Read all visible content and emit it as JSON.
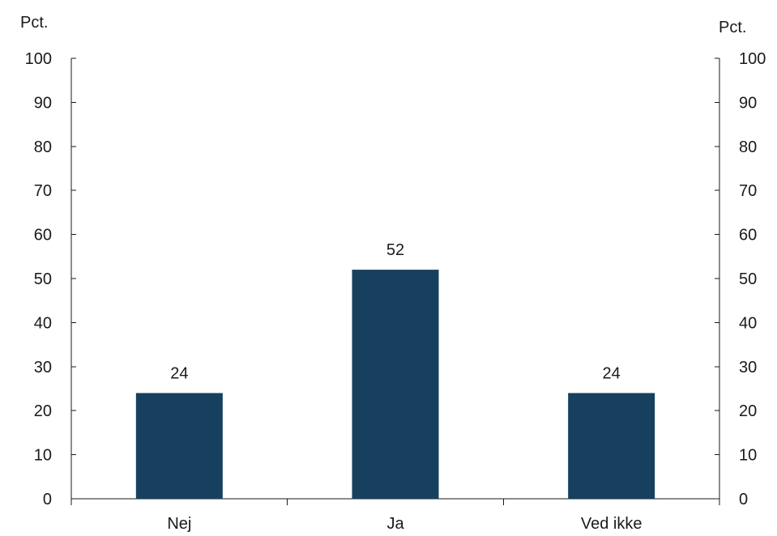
{
  "chart_data": {
    "type": "bar",
    "categories": [
      "Nej",
      "Ja",
      "Ved ikke"
    ],
    "values": [
      24,
      52,
      24
    ],
    "data_labels": [
      "24",
      "52",
      "24"
    ],
    "y_unit_left": "Pct.",
    "y_unit_right": "Pct.",
    "ylim": [
      0,
      100
    ],
    "yticks": [
      0,
      10,
      20,
      30,
      40,
      50,
      60,
      70,
      80,
      90,
      100
    ],
    "grid": false,
    "legend": "none",
    "bar_color": "#17405f",
    "axis_color": "#1a1a1a"
  }
}
